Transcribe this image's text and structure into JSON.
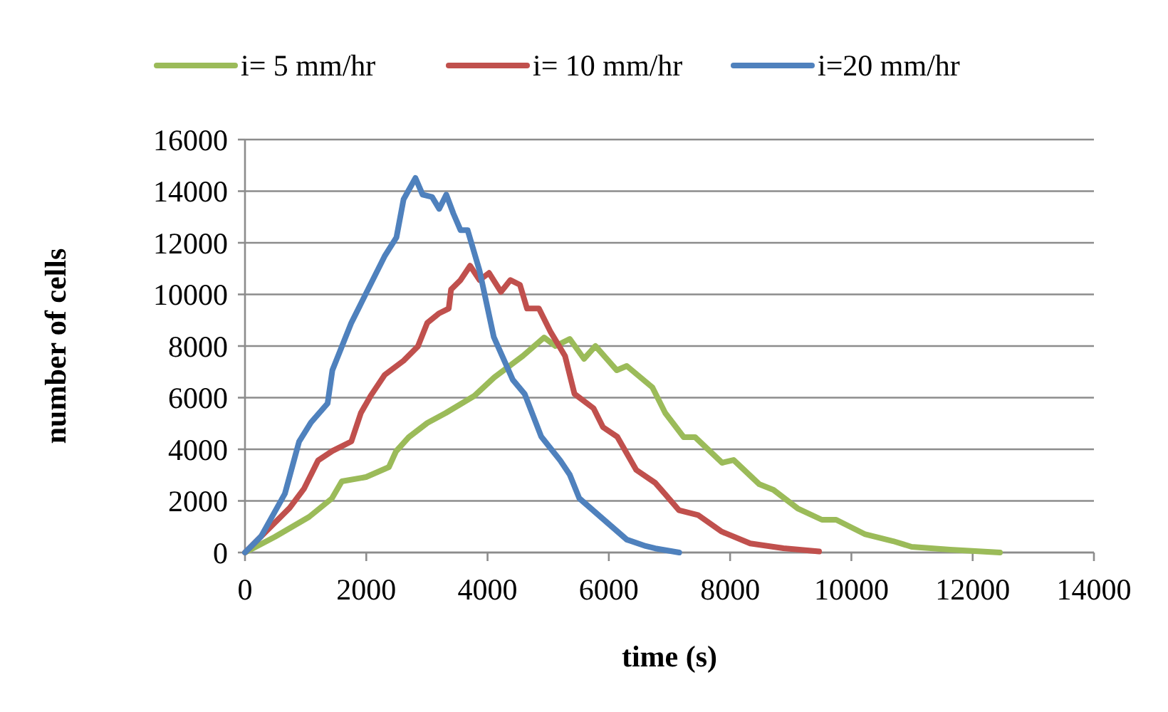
{
  "chart_data": {
    "type": "line",
    "xlabel": "time (s)",
    "ylabel": "number of cells",
    "xlim": [
      0,
      14000
    ],
    "xticks": [
      0,
      2000,
      4000,
      6000,
      8000,
      10000,
      12000,
      14000
    ],
    "ylim": [
      0,
      16000
    ],
    "yticks": [
      0,
      2000,
      4000,
      6000,
      8000,
      10000,
      12000,
      14000,
      16000
    ],
    "grid": "y",
    "legend": "top",
    "series": [
      {
        "name": "i= 5 mm/hr",
        "color": "#9bbb59",
        "x": [
          0,
          493,
          1057,
          1433,
          1597,
          1997,
          2373,
          2490,
          2701,
          3007,
          3312,
          3782,
          4111,
          4581,
          4933,
          5121,
          5356,
          5591,
          5779,
          6131,
          6296,
          6718,
          6930,
          7235,
          7423,
          7869,
          8057,
          8480,
          8715,
          9114,
          9514,
          9749,
          10218,
          10688,
          10994,
          11628,
          12450
        ],
        "values": [
          0,
          607,
          1379,
          2097,
          2759,
          2924,
          3310,
          3917,
          4469,
          5021,
          5407,
          6069,
          6786,
          7614,
          8331,
          8000,
          8276,
          7503,
          8000,
          7062,
          7228,
          6400,
          5407,
          4469,
          4469,
          3476,
          3586,
          2648,
          2428,
          1710,
          1269,
          1269,
          717,
          441,
          221,
          110,
          0
        ]
      },
      {
        "name": "i= 10 mm/hr",
        "color": "#c0504d",
        "x": [
          0,
          345,
          736,
          971,
          1206,
          1441,
          1754,
          1911,
          2067,
          2302,
          2615,
          2850,
          3007,
          3203,
          3360,
          3398,
          3555,
          3712,
          3868,
          4025,
          4221,
          4377,
          4534,
          4651,
          4847,
          5043,
          5278,
          5434,
          5747,
          5904,
          6138,
          6452,
          6765,
          6922,
          7157,
          7470,
          7862,
          8332,
          8880,
          9467
        ],
        "values": [
          0,
          809,
          1729,
          2464,
          3568,
          3936,
          4303,
          5407,
          6051,
          6878,
          7430,
          7982,
          8901,
          9269,
          9453,
          10189,
          10556,
          11108,
          10556,
          10832,
          10097,
          10556,
          10373,
          9453,
          9453,
          8533,
          7614,
          6143,
          5591,
          4855,
          4487,
          3200,
          2700,
          2279,
          1637,
          1453,
          809,
          350,
          166,
          40
        ]
      },
      {
        "name": "i=20 mm/hr",
        "color": "#4f81bd",
        "x": [
          0,
          265,
          658,
          893,
          1088,
          1362,
          1441,
          1597,
          1754,
          1989,
          2302,
          2498,
          2615,
          2811,
          2929,
          3085,
          3203,
          3320,
          3437,
          3555,
          3672,
          3868,
          4103,
          4416,
          4612,
          4886,
          5199,
          5356,
          5513,
          5904,
          6296,
          6609,
          6765,
          7160
        ],
        "values": [
          0,
          623,
          2279,
          4303,
          5039,
          5775,
          7062,
          7982,
          8901,
          10005,
          11476,
          12211,
          13683,
          14510,
          13867,
          13775,
          13315,
          13867,
          13131,
          12487,
          12487,
          10924,
          8349,
          6694,
          6143,
          4487,
          3568,
          3016,
          2100,
          1300,
          500,
          250,
          160,
          0
        ]
      }
    ]
  }
}
